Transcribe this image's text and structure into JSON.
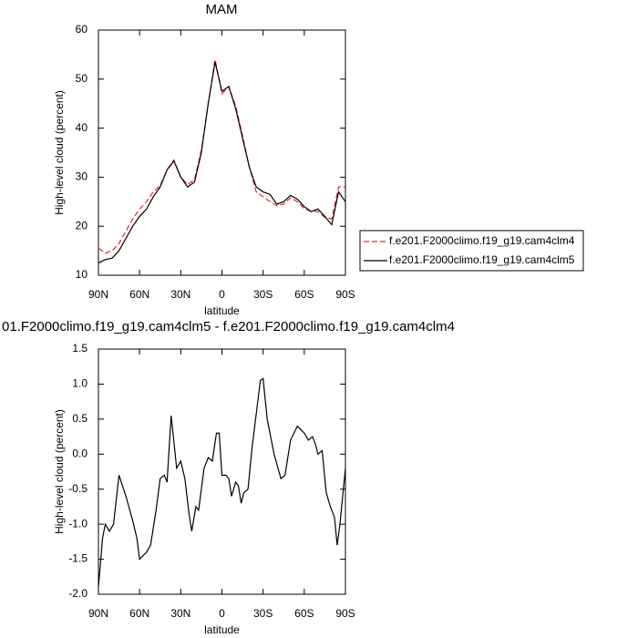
{
  "chart_data": [
    {
      "type": "line",
      "title": "MAM",
      "x_label": "latitude",
      "y_label": "High-level cloud (percent)",
      "x": [
        90,
        85,
        80,
        75,
        70,
        65,
        60,
        55,
        50,
        45,
        40,
        35,
        30,
        25,
        20,
        15,
        10,
        5,
        0,
        -5,
        -10,
        -15,
        -20,
        -25,
        -30,
        -35,
        -40,
        -45,
        -50,
        -55,
        -60,
        -65,
        -70,
        -75,
        -80,
        -85,
        -90
      ],
      "series": [
        {
          "name": "f.e201.F2000climo.f19_g19.cam4clm4",
          "color": "#e8262b",
          "dash": true,
          "values": [
            15.5,
            14.5,
            15,
            16.5,
            19,
            21.5,
            23.5,
            25,
            27,
            28.3,
            31.5,
            33.5,
            30,
            28.5,
            29.5,
            35.5,
            45,
            54,
            47,
            48.5,
            44.5,
            38.5,
            32,
            27,
            26,
            25,
            24.2,
            24.5,
            25.8,
            25,
            23.6,
            23,
            23,
            21.8,
            21.5,
            28,
            28
          ]
        },
        {
          "name": "f.e201.F2000climo.f19_g19.cam4clm5",
          "color": "#000000",
          "dash": false,
          "values": [
            12.5,
            13.2,
            13.5,
            15,
            17.5,
            20,
            22,
            23.5,
            26,
            28,
            31.5,
            33.3,
            30,
            28,
            29,
            35,
            45,
            53.5,
            47.5,
            48.5,
            44,
            38,
            32,
            28,
            27,
            26.5,
            24.5,
            25,
            26.3,
            25.5,
            24,
            23,
            23.5,
            22,
            20.3,
            27,
            25
          ]
        }
      ],
      "xlim": [
        90,
        -90
      ],
      "xticks": [
        {
          "value": 90,
          "label": "90N"
        },
        {
          "value": 60,
          "label": "60N"
        },
        {
          "value": 30,
          "label": "30N"
        },
        0,
        {
          "value": -30,
          "label": "30S"
        },
        {
          "value": -60,
          "label": "60S"
        },
        {
          "value": -90,
          "label": "90S"
        }
      ],
      "ylim": [
        10,
        60
      ],
      "yticks": [
        10,
        20,
        30,
        40,
        50,
        60
      ],
      "legend": "right"
    },
    {
      "type": "line",
      "title": "01.F2000climo.f19_g19.cam4clm5 - f.e201.F2000climo.f19_g19.cam4clm4",
      "x_label": "latitude",
      "y_label": "High-level cloud (percent)",
      "x": [
        90,
        87,
        85,
        82,
        79,
        75,
        70,
        65,
        62,
        60,
        55,
        52,
        48,
        45,
        42,
        40,
        37,
        33,
        30,
        27,
        24,
        22,
        19,
        17,
        13,
        10,
        7,
        4,
        2,
        0,
        -3,
        -5,
        -7,
        -10,
        -12,
        -14,
        -16,
        -19,
        -22,
        -28,
        -30,
        -33,
        -38,
        -43,
        -46,
        -50,
        -55,
        -60,
        -63,
        -66,
        -68,
        -70,
        -73,
        -76,
        -79,
        -82,
        -84,
        -86,
        -88,
        -90
      ],
      "series": [
        {
          "color": "#000000",
          "dash": false,
          "values": [
            -1.9,
            -1.2,
            -1.0,
            -1.1,
            -1.0,
            -0.3,
            -0.6,
            -0.95,
            -1.2,
            -1.5,
            -1.4,
            -1.3,
            -0.8,
            -0.35,
            -0.3,
            -0.4,
            0.55,
            -0.2,
            -0.1,
            -0.35,
            -0.85,
            -1.1,
            -0.75,
            -0.8,
            -0.2,
            -0.05,
            -0.1,
            0.3,
            0.3,
            -0.3,
            -0.3,
            -0.35,
            -0.6,
            -0.4,
            -0.45,
            -0.7,
            -0.55,
            -0.5,
            0.1,
            1.05,
            1.08,
            0.5,
            0.0,
            -0.35,
            -0.3,
            0.2,
            0.4,
            0.3,
            0.2,
            0.25,
            0.15,
            0.0,
            0.05,
            -0.55,
            -0.75,
            -0.9,
            -1.3,
            -1.0,
            -0.6,
            -0.2
          ]
        }
      ],
      "xlim": [
        90,
        -90
      ],
      "xticks": [
        {
          "value": 90,
          "label": "90N"
        },
        {
          "value": 60,
          "label": "60N"
        },
        {
          "value": 30,
          "label": "30N"
        },
        0,
        {
          "value": -30,
          "label": "30S"
        },
        {
          "value": -60,
          "label": "60S"
        },
        {
          "value": -90,
          "label": "90S"
        }
      ],
      "ylim": [
        -2.0,
        1.5
      ],
      "yticks": [
        {
          "value": -2,
          "label": "-2.0"
        },
        {
          "value": -1.5,
          "label": "-1.5"
        },
        {
          "value": -1,
          "label": "-1.0"
        },
        {
          "value": -0.5,
          "label": "-0.5"
        },
        {
          "value": 0,
          "label": "0.0"
        },
        {
          "value": 0.5,
          "label": "0.5"
        },
        {
          "value": 1,
          "label": "1.0"
        },
        {
          "value": 1.5,
          "label": "1.5"
        }
      ]
    }
  ]
}
